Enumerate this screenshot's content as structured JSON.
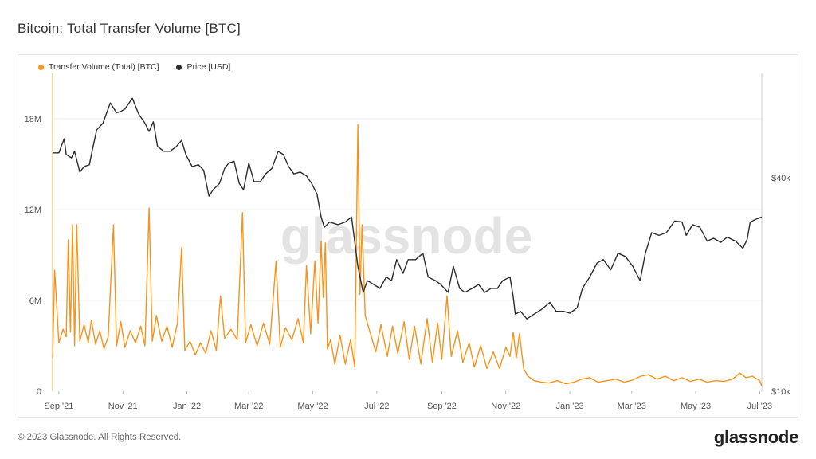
{
  "page": {
    "title": "Bitcoin: Total Transfer Volume [BTC]",
    "footer_copyright": "© 2023 Glassnode. All Rights Reserved.",
    "footer_logo": "glassnode",
    "watermark": "glassnode"
  },
  "colors": {
    "volume": "#f7931a",
    "price": "#2b2b2b",
    "grid": "#ececec",
    "cursor": "#f7a84a"
  },
  "chart_data": {
    "type": "line",
    "title": "Bitcoin: Total Transfer Volume [BTC]",
    "x_tick_labels": [
      "Sep '21",
      "Nov '21",
      "Jan '22",
      "Mar '22",
      "May '22",
      "Jul '22",
      "Sep '22",
      "Nov '22",
      "Jan '23",
      "Mar '23",
      "May '23",
      "Jul '23"
    ],
    "x_tick_dates": [
      "2021-09-01",
      "2021-11-01",
      "2022-01-01",
      "2022-03-01",
      "2022-05-01",
      "2022-07-01",
      "2022-09-01",
      "2022-11-01",
      "2023-01-01",
      "2023-03-01",
      "2023-05-01",
      "2023-07-01"
    ],
    "x_range": [
      "2021-08-26",
      "2023-07-03"
    ],
    "y_left": {
      "label": "",
      "ticks": [
        0,
        6000000,
        12000000,
        18000000
      ],
      "tick_labels": [
        "0",
        "6M",
        "12M",
        "18M"
      ],
      "range": [
        0,
        21000000
      ],
      "scale": "linear"
    },
    "y_right": {
      "label": "",
      "ticks": [
        10000,
        40000
      ],
      "tick_labels": [
        "$10k",
        "$40k"
      ],
      "scale": "log"
    },
    "grid": "horizontal",
    "legend_position": "top-left",
    "series": [
      {
        "name": "Transfer Volume (Total) [BTC]",
        "axis": "left",
        "color": "#f7931a",
        "points": [
          [
            "2021-08-26",
            2200000
          ],
          [
            "2021-08-28",
            8000000
          ],
          [
            "2021-09-01",
            3200000
          ],
          [
            "2021-09-05",
            4100000
          ],
          [
            "2021-09-08",
            3600000
          ],
          [
            "2021-09-10",
            10000000
          ],
          [
            "2021-09-12",
            3900000
          ],
          [
            "2021-09-14",
            11000000
          ],
          [
            "2021-09-16",
            3000000
          ],
          [
            "2021-09-18",
            11000000
          ],
          [
            "2021-09-21",
            3300000
          ],
          [
            "2021-09-25",
            4400000
          ],
          [
            "2021-09-29",
            3200000
          ],
          [
            "2021-10-02",
            4700000
          ],
          [
            "2021-10-06",
            3100000
          ],
          [
            "2021-10-10",
            4000000
          ],
          [
            "2021-10-14",
            2800000
          ],
          [
            "2021-10-18",
            3600000
          ],
          [
            "2021-10-23",
            11000000
          ],
          [
            "2021-10-26",
            3000000
          ],
          [
            "2021-10-30",
            4600000
          ],
          [
            "2021-11-03",
            2900000
          ],
          [
            "2021-11-08",
            4000000
          ],
          [
            "2021-11-13",
            3200000
          ],
          [
            "2021-11-18",
            4300000
          ],
          [
            "2021-11-22",
            3000000
          ],
          [
            "2021-11-26",
            12100000
          ],
          [
            "2021-11-29",
            3300000
          ],
          [
            "2021-12-03",
            5000000
          ],
          [
            "2021-12-08",
            3300000
          ],
          [
            "2021-12-13",
            4300000
          ],
          [
            "2021-12-18",
            2900000
          ],
          [
            "2021-12-23",
            4500000
          ],
          [
            "2021-12-27",
            9500000
          ],
          [
            "2021-12-30",
            2700000
          ],
          [
            "2022-01-04",
            3300000
          ],
          [
            "2022-01-09",
            2400000
          ],
          [
            "2022-01-14",
            3200000
          ],
          [
            "2022-01-19",
            2500000
          ],
          [
            "2022-01-24",
            4000000
          ],
          [
            "2022-01-29",
            2700000
          ],
          [
            "2022-02-02",
            6300000
          ],
          [
            "2022-02-06",
            3500000
          ],
          [
            "2022-02-12",
            4100000
          ],
          [
            "2022-02-18",
            3400000
          ],
          [
            "2022-02-23",
            11800000
          ],
          [
            "2022-02-26",
            3200000
          ],
          [
            "2022-03-03",
            4400000
          ],
          [
            "2022-03-09",
            3000000
          ],
          [
            "2022-03-15",
            4500000
          ],
          [
            "2022-03-21",
            3100000
          ],
          [
            "2022-03-27",
            8600000
          ],
          [
            "2022-03-31",
            2900000
          ],
          [
            "2022-04-05",
            4200000
          ],
          [
            "2022-04-11",
            3400000
          ],
          [
            "2022-04-17",
            4800000
          ],
          [
            "2022-04-22",
            3200000
          ],
          [
            "2022-04-25",
            8300000
          ],
          [
            "2022-04-29",
            3800000
          ],
          [
            "2022-05-03",
            8600000
          ],
          [
            "2022-05-06",
            4500000
          ],
          [
            "2022-05-09",
            9900000
          ],
          [
            "2022-05-11",
            6200000
          ],
          [
            "2022-05-13",
            9800000
          ],
          [
            "2022-05-15",
            2800000
          ],
          [
            "2022-05-18",
            3400000
          ],
          [
            "2022-05-22",
            1800000
          ],
          [
            "2022-05-27",
            3700000
          ],
          [
            "2022-06-01",
            1800000
          ],
          [
            "2022-06-06",
            3400000
          ],
          [
            "2022-06-10",
            1600000
          ],
          [
            "2022-06-13",
            17600000
          ],
          [
            "2022-06-15",
            6400000
          ],
          [
            "2022-06-17",
            11000000
          ],
          [
            "2022-06-20",
            5000000
          ],
          [
            "2022-06-25",
            3800000
          ],
          [
            "2022-06-30",
            2600000
          ],
          [
            "2022-07-05",
            4400000
          ],
          [
            "2022-07-11",
            2300000
          ],
          [
            "2022-07-16",
            4300000
          ],
          [
            "2022-07-21",
            2500000
          ],
          [
            "2022-07-27",
            4600000
          ],
          [
            "2022-08-01",
            2100000
          ],
          [
            "2022-08-06",
            4300000
          ],
          [
            "2022-08-12",
            1800000
          ],
          [
            "2022-08-18",
            4800000
          ],
          [
            "2022-08-23",
            1900000
          ],
          [
            "2022-08-28",
            4500000
          ],
          [
            "2022-09-01",
            2100000
          ],
          [
            "2022-09-06",
            6300000
          ],
          [
            "2022-09-10",
            2300000
          ],
          [
            "2022-09-16",
            4000000
          ],
          [
            "2022-09-21",
            1900000
          ],
          [
            "2022-09-27",
            3200000
          ],
          [
            "2022-10-02",
            1600000
          ],
          [
            "2022-10-08",
            3000000
          ],
          [
            "2022-10-14",
            1500000
          ],
          [
            "2022-10-20",
            2600000
          ],
          [
            "2022-10-26",
            1500000
          ],
          [
            "2022-11-01",
            2900000
          ],
          [
            "2022-11-05",
            2300000
          ],
          [
            "2022-11-08",
            3900000
          ],
          [
            "2022-11-11",
            2200000
          ],
          [
            "2022-11-14",
            3800000
          ],
          [
            "2022-11-18",
            1500000
          ],
          [
            "2022-11-22",
            1000000
          ],
          [
            "2022-11-28",
            700000
          ],
          [
            "2022-12-05",
            600000
          ],
          [
            "2022-12-12",
            550000
          ],
          [
            "2022-12-20",
            700000
          ],
          [
            "2022-12-28",
            500000
          ],
          [
            "2023-01-05",
            600000
          ],
          [
            "2023-01-12",
            800000
          ],
          [
            "2023-01-20",
            900000
          ],
          [
            "2023-01-28",
            600000
          ],
          [
            "2023-02-05",
            700000
          ],
          [
            "2023-02-14",
            800000
          ],
          [
            "2023-02-22",
            600000
          ],
          [
            "2023-03-02",
            750000
          ],
          [
            "2023-03-10",
            1000000
          ],
          [
            "2023-03-17",
            1100000
          ],
          [
            "2023-03-25",
            800000
          ],
          [
            "2023-04-02",
            1000000
          ],
          [
            "2023-04-10",
            700000
          ],
          [
            "2023-04-18",
            900000
          ],
          [
            "2023-04-26",
            650000
          ],
          [
            "2023-05-04",
            800000
          ],
          [
            "2023-05-12",
            600000
          ],
          [
            "2023-05-20",
            700000
          ],
          [
            "2023-05-28",
            650000
          ],
          [
            "2023-06-05",
            800000
          ],
          [
            "2023-06-12",
            1200000
          ],
          [
            "2023-06-18",
            900000
          ],
          [
            "2023-06-24",
            1000000
          ],
          [
            "2023-07-01",
            700000
          ],
          [
            "2023-07-03",
            350000
          ]
        ]
      },
      {
        "name": "Price [USD]",
        "axis": "right",
        "color": "#2b2b2b",
        "points": [
          [
            "2021-08-26",
            47000
          ],
          [
            "2021-09-01",
            47000
          ],
          [
            "2021-09-06",
            51500
          ],
          [
            "2021-09-08",
            46500
          ],
          [
            "2021-09-13",
            45500
          ],
          [
            "2021-09-16",
            47500
          ],
          [
            "2021-09-21",
            41500
          ],
          [
            "2021-09-25",
            43000
          ],
          [
            "2021-09-30",
            43500
          ],
          [
            "2021-10-03",
            48000
          ],
          [
            "2021-10-07",
            54500
          ],
          [
            "2021-10-13",
            57000
          ],
          [
            "2021-10-20",
            65000
          ],
          [
            "2021-10-26",
            61000
          ],
          [
            "2021-10-30",
            61500
          ],
          [
            "2021-11-03",
            62500
          ],
          [
            "2021-11-10",
            67000
          ],
          [
            "2021-11-16",
            60500
          ],
          [
            "2021-11-22",
            57000
          ],
          [
            "2021-11-26",
            54000
          ],
          [
            "2021-11-30",
            57500
          ],
          [
            "2021-12-04",
            49000
          ],
          [
            "2021-12-10",
            47500
          ],
          [
            "2021-12-16",
            47500
          ],
          [
            "2021-12-22",
            49000
          ],
          [
            "2021-12-27",
            51000
          ],
          [
            "2021-12-31",
            46500
          ],
          [
            "2022-01-06",
            43000
          ],
          [
            "2022-01-12",
            43500
          ],
          [
            "2022-01-17",
            42000
          ],
          [
            "2022-01-22",
            35500
          ],
          [
            "2022-01-26",
            37000
          ],
          [
            "2022-02-01",
            38500
          ],
          [
            "2022-02-06",
            42500
          ],
          [
            "2022-02-10",
            44000
          ],
          [
            "2022-02-15",
            44500
          ],
          [
            "2022-02-20",
            38500
          ],
          [
            "2022-02-24",
            37000
          ],
          [
            "2022-03-01",
            44000
          ],
          [
            "2022-03-06",
            39000
          ],
          [
            "2022-03-12",
            39000
          ],
          [
            "2022-03-17",
            41000
          ],
          [
            "2022-03-23",
            42500
          ],
          [
            "2022-03-29",
            47500
          ],
          [
            "2022-04-03",
            46500
          ],
          [
            "2022-04-08",
            43000
          ],
          [
            "2022-04-13",
            41000
          ],
          [
            "2022-04-19",
            41500
          ],
          [
            "2022-04-25",
            40500
          ],
          [
            "2022-04-30",
            38500
          ],
          [
            "2022-05-05",
            36000
          ],
          [
            "2022-05-09",
            31000
          ],
          [
            "2022-05-12",
            29000
          ],
          [
            "2022-05-17",
            30000
          ],
          [
            "2022-05-25",
            29500
          ],
          [
            "2022-06-01",
            30000
          ],
          [
            "2022-06-07",
            31000
          ],
          [
            "2022-06-13",
            22500
          ],
          [
            "2022-06-18",
            19000
          ],
          [
            "2022-06-22",
            20500
          ],
          [
            "2022-06-28",
            20000
          ],
          [
            "2022-07-04",
            19500
          ],
          [
            "2022-07-10",
            21000
          ],
          [
            "2022-07-15",
            20500
          ],
          [
            "2022-07-20",
            23500
          ],
          [
            "2022-07-26",
            21500
          ],
          [
            "2022-07-31",
            23500
          ],
          [
            "2022-08-07",
            23500
          ],
          [
            "2022-08-14",
            24500
          ],
          [
            "2022-08-19",
            21000
          ],
          [
            "2022-08-26",
            20500
          ],
          [
            "2022-08-31",
            20000
          ],
          [
            "2022-09-07",
            19000
          ],
          [
            "2022-09-12",
            22500
          ],
          [
            "2022-09-18",
            19500
          ],
          [
            "2022-09-23",
            19000
          ],
          [
            "2022-09-30",
            19500
          ],
          [
            "2022-10-06",
            20000
          ],
          [
            "2022-10-12",
            19000
          ],
          [
            "2022-10-18",
            19500
          ],
          [
            "2022-10-24",
            19500
          ],
          [
            "2022-10-29",
            20500
          ],
          [
            "2022-11-05",
            21000
          ],
          [
            "2022-11-08",
            18500
          ],
          [
            "2022-11-10",
            16500
          ],
          [
            "2022-11-15",
            16800
          ],
          [
            "2022-11-21",
            16000
          ],
          [
            "2022-11-28",
            16500
          ],
          [
            "2022-12-05",
            17000
          ],
          [
            "2022-12-13",
            17800
          ],
          [
            "2022-12-19",
            16800
          ],
          [
            "2022-12-26",
            16800
          ],
          [
            "2023-01-01",
            16600
          ],
          [
            "2023-01-08",
            17200
          ],
          [
            "2023-01-13",
            19500
          ],
          [
            "2023-01-20",
            21000
          ],
          [
            "2023-01-27",
            23000
          ],
          [
            "2023-02-02",
            23500
          ],
          [
            "2023-02-09",
            22000
          ],
          [
            "2023-02-16",
            24500
          ],
          [
            "2023-02-23",
            24000
          ],
          [
            "2023-03-02",
            22500
          ],
          [
            "2023-03-09",
            20500
          ],
          [
            "2023-03-14",
            24500
          ],
          [
            "2023-03-20",
            28000
          ],
          [
            "2023-03-27",
            27500
          ],
          [
            "2023-04-03",
            28000
          ],
          [
            "2023-04-11",
            30200
          ],
          [
            "2023-04-18",
            30000
          ],
          [
            "2023-04-22",
            27500
          ],
          [
            "2023-04-28",
            29500
          ],
          [
            "2023-05-05",
            29000
          ],
          [
            "2023-05-12",
            26500
          ],
          [
            "2023-05-18",
            27000
          ],
          [
            "2023-05-25",
            26300
          ],
          [
            "2023-05-31",
            27200
          ],
          [
            "2023-06-08",
            26500
          ],
          [
            "2023-06-15",
            25300
          ],
          [
            "2023-06-19",
            26800
          ],
          [
            "2023-06-22",
            30000
          ],
          [
            "2023-06-27",
            30500
          ],
          [
            "2023-07-03",
            31000
          ]
        ]
      }
    ]
  }
}
